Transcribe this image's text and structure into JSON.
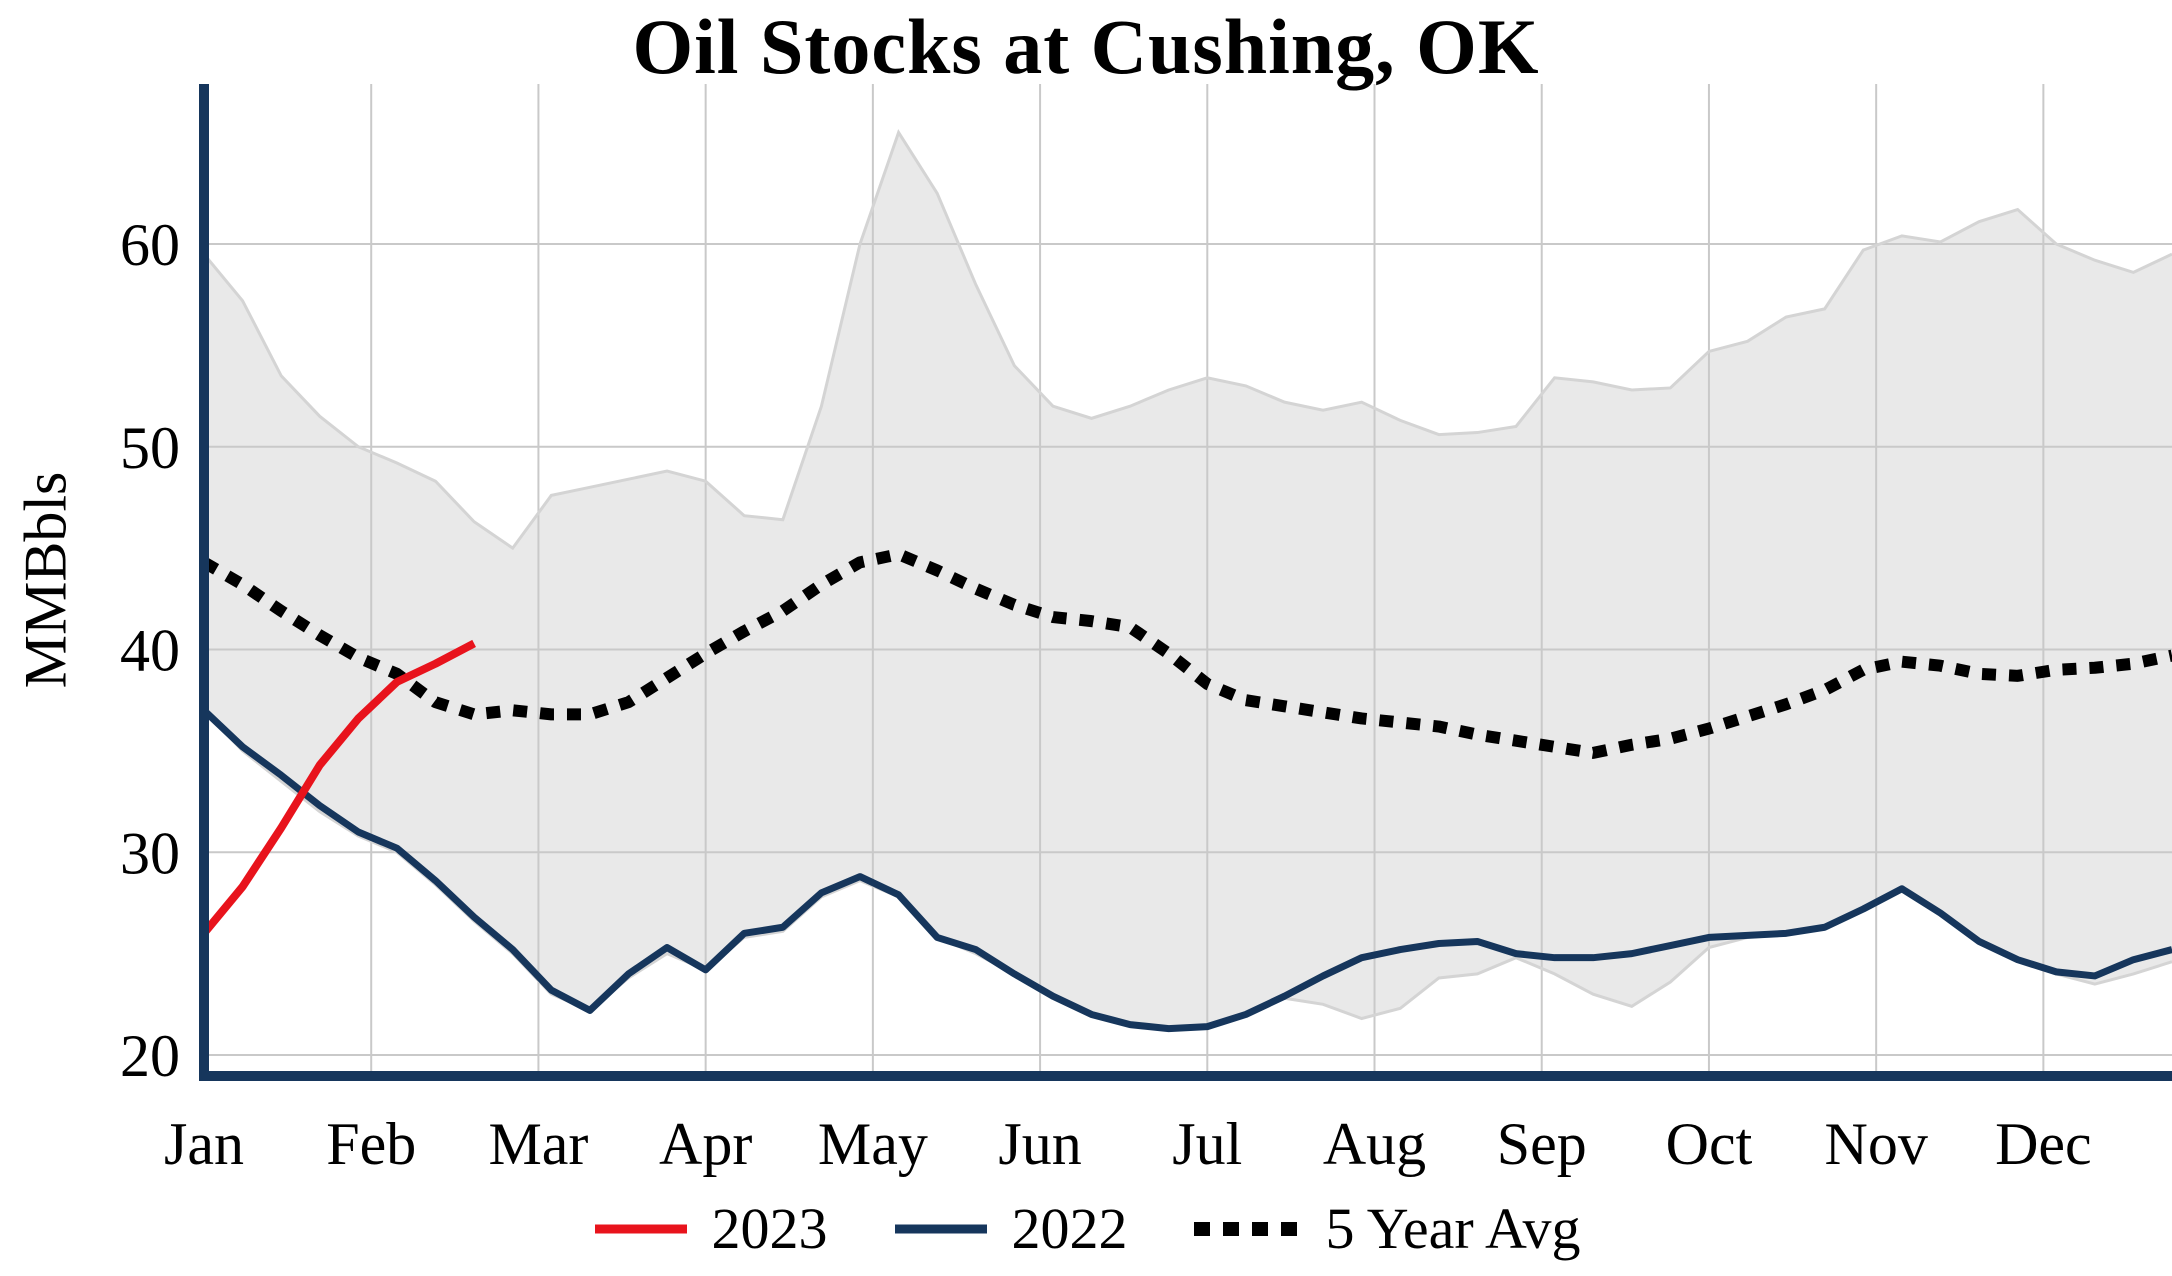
{
  "title": "Oil Stocks at Cushing, OK",
  "y_axis": {
    "label": "MMBbls"
  },
  "legend": {
    "items": [
      {
        "label": "2023",
        "color": "#e8131c",
        "dash": "none"
      },
      {
        "label": "2022",
        "color": "#16365c",
        "dash": "none"
      },
      {
        "label": "5 Year Avg",
        "color": "#000000",
        "dash": "16 13"
      }
    ]
  },
  "chart_data": {
    "type": "line",
    "title": "Oil Stocks at Cushing, OK",
    "xlabel": "",
    "ylabel": "MMBbls",
    "ylim": [
      19.2,
      67
    ],
    "yticks": [
      20,
      30,
      40,
      50,
      60
    ],
    "categories": [
      "Jan",
      "Feb",
      "Mar",
      "Apr",
      "May",
      "Jun",
      "Jul",
      "Aug",
      "Sep",
      "Oct",
      "Nov",
      "Dec"
    ],
    "x_unit": "weekly, 52 points spanning Jan-Dec",
    "grid": "on",
    "legend_position": "bottom",
    "axis_color": "#16365c",
    "grid_color": "#c9c9c9",
    "series": [
      {
        "id": "five-year-range",
        "name": "5 Year Range (shaded band)",
        "type": "band",
        "fill": "#e9e9e9",
        "edge": "#d4d4d4",
        "max": [
          59.5,
          57.2,
          53.5,
          51.5,
          50.0,
          49.2,
          48.3,
          46.3,
          45.0,
          47.6,
          48.0,
          48.4,
          48.8,
          48.3,
          46.6,
          46.4,
          52.0,
          60.0,
          65.5,
          62.5,
          58.0,
          54.0,
          52.0,
          51.4,
          52.0,
          52.8,
          53.4,
          53.0,
          52.2,
          51.8,
          52.2,
          51.3,
          50.6,
          50.7,
          51.0,
          53.4,
          53.2,
          52.8,
          52.9,
          54.7,
          55.2,
          56.4,
          56.8,
          59.7,
          60.4,
          60.1,
          61.1,
          61.7,
          60.0,
          59.2,
          58.6,
          59.5
        ],
        "min": [
          37.0,
          35.0,
          33.5,
          32.0,
          30.8,
          30.0,
          28.4,
          26.6,
          25.0,
          23.0,
          22.2,
          23.8,
          25.0,
          24.2,
          25.8,
          26.1,
          27.8,
          28.6,
          27.8,
          25.8,
          25.0,
          24.0,
          22.9,
          22.0,
          21.5,
          21.3,
          21.4,
          22.0,
          22.8,
          22.5,
          21.8,
          22.3,
          23.8,
          24.0,
          24.8,
          24.0,
          23.0,
          22.4,
          23.6,
          25.3,
          25.8,
          26.0,
          26.3,
          27.2,
          28.2,
          27.0,
          25.6,
          24.7,
          24.0,
          23.5,
          24.0,
          24.6
        ]
      },
      {
        "id": "five-year-avg",
        "name": "5 Year Avg",
        "color": "#000000",
        "width": 12,
        "dash": "14 13",
        "values": [
          44.3,
          43.2,
          41.9,
          40.7,
          39.6,
          38.8,
          37.4,
          36.8,
          37.0,
          36.8,
          36.8,
          37.4,
          38.6,
          39.8,
          40.9,
          41.9,
          43.2,
          44.3,
          44.7,
          43.9,
          43.0,
          42.2,
          41.6,
          41.4,
          41.1,
          39.8,
          38.3,
          37.5,
          37.2,
          36.9,
          36.6,
          36.4,
          36.2,
          35.8,
          35.5,
          35.2,
          34.9,
          35.3,
          35.6,
          36.1,
          36.7,
          37.3,
          38.0,
          39.0,
          39.4,
          39.2,
          38.8,
          38.7,
          39.0,
          39.1,
          39.3,
          39.7
        ]
      },
      {
        "id": "y2022",
        "name": "2022",
        "color": "#16365c",
        "width": 7,
        "dash": "none",
        "values": [
          37.0,
          35.2,
          33.8,
          32.3,
          31.0,
          30.2,
          28.6,
          26.8,
          25.2,
          23.2,
          22.2,
          24.0,
          25.3,
          24.2,
          26.0,
          26.3,
          28.0,
          28.8,
          27.9,
          25.8,
          25.2,
          24.0,
          22.9,
          22.0,
          21.5,
          21.3,
          21.4,
          22.0,
          22.9,
          23.9,
          24.8,
          25.2,
          25.5,
          25.6,
          25.0,
          24.8,
          24.8,
          25.0,
          25.4,
          25.8,
          25.9,
          26.0,
          26.3,
          27.2,
          28.2,
          27.0,
          25.6,
          24.7,
          24.1,
          23.9,
          24.7,
          25.2
        ]
      },
      {
        "id": "y2023",
        "name": "2023",
        "color": "#e8131c",
        "width": 8,
        "dash": "none",
        "values": [
          26.0,
          28.3,
          31.2,
          34.3,
          36.6,
          38.4,
          39.3,
          40.3
        ]
      }
    ]
  }
}
